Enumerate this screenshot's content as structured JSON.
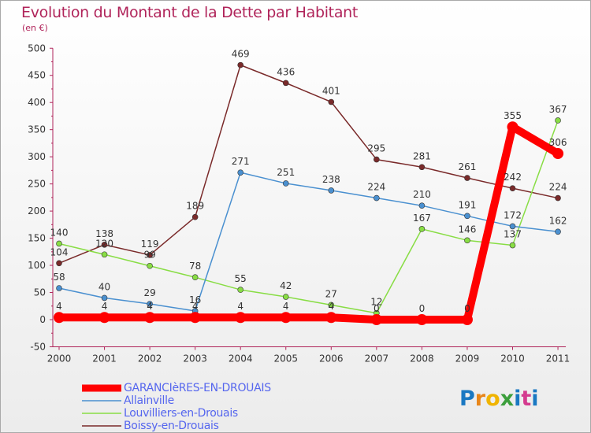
{
  "title": "Evolution du Montant de la Dette par Habitant",
  "subtitle": "(en €)",
  "logo": {
    "letters": [
      "P",
      "r",
      "o",
      "x",
      "i",
      "t",
      "i"
    ],
    "colors": [
      "#1a78c2",
      "#e8861a",
      "#f0b400",
      "#3c9f3c",
      "#1a78c2",
      "#d43b8f",
      "#1a78c2"
    ]
  },
  "chart_data": {
    "type": "line",
    "title": "Evolution du Montant de la Dette par Habitant",
    "ylabel": "(en €)",
    "xlabel": "",
    "x": [
      "2000",
      "2001",
      "2002",
      "2003",
      "2004",
      "2005",
      "2006",
      "2007",
      "2008",
      "2009",
      "2010",
      "2011"
    ],
    "ylim": [
      -50,
      500
    ],
    "yticks": [
      -50,
      0,
      50,
      100,
      150,
      200,
      250,
      300,
      350,
      400,
      450,
      500
    ],
    "grid": false,
    "legend_position": "bottom-left",
    "series": [
      {
        "name": "GARANCIèRES-EN-DROUAIS",
        "color": "#ff0000",
        "thick": true,
        "values": [
          4,
          4,
          4,
          4,
          4,
          4,
          4,
          0,
          0,
          0,
          355,
          306
        ],
        "labels": [
          "4",
          "4",
          "4",
          "4",
          "4",
          "4",
          "4",
          "0",
          "0",
          "0",
          "355",
          "306"
        ]
      },
      {
        "name": "Allainville",
        "color": "#4a90d0",
        "thick": false,
        "values": [
          58,
          40,
          29,
          16,
          271,
          251,
          238,
          224,
          210,
          191,
          172,
          162
        ],
        "labels": [
          "58",
          "40",
          "29",
          "16",
          "271",
          "251",
          "238",
          "224",
          "210",
          "191",
          "172",
          "162"
        ]
      },
      {
        "name": "Louvilliers-en-Drouais",
        "color": "#88dd44",
        "thick": false,
        "values": [
          140,
          120,
          99,
          78,
          55,
          42,
          27,
          12,
          167,
          146,
          137,
          367
        ],
        "labels": [
          "140",
          "120",
          "99",
          "78",
          "55",
          "42",
          "27",
          "12",
          "167",
          "146",
          "137",
          "367"
        ]
      },
      {
        "name": "Boissy-en-Drouais",
        "color": "#7a2a2a",
        "thick": false,
        "values": [
          104,
          138,
          119,
          189,
          469,
          436,
          401,
          295,
          281,
          261,
          242,
          224
        ],
        "labels": [
          "104",
          "138",
          "119",
          "189",
          "469",
          "436",
          "401",
          "295",
          "281",
          "261",
          "242",
          "224"
        ]
      }
    ]
  }
}
